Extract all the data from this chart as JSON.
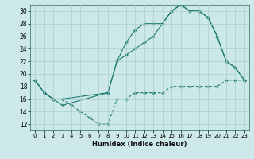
{
  "xlabel": "Humidex (Indice chaleur)",
  "bg_color": "#cce8e8",
  "line_color": "#1a7a6e",
  "grid_color": "#aacece",
  "xlim": [
    -0.5,
    23.5
  ],
  "ylim": [
    11,
    31
  ],
  "xticks": [
    0,
    1,
    2,
    3,
    4,
    5,
    6,
    7,
    8,
    9,
    10,
    11,
    12,
    13,
    14,
    15,
    16,
    17,
    18,
    19,
    20,
    21,
    22,
    23
  ],
  "yticks": [
    12,
    14,
    16,
    18,
    20,
    22,
    24,
    26,
    28,
    30
  ],
  "line1_x": [
    0,
    1,
    2,
    3,
    8,
    9,
    10,
    11,
    12,
    13,
    14,
    15,
    16,
    17,
    18,
    19,
    20,
    21,
    22,
    23
  ],
  "line1_y": [
    19,
    17,
    16,
    15,
    17,
    22,
    25,
    27,
    28,
    28,
    28,
    30,
    31,
    30,
    30,
    29,
    26,
    22,
    21,
    19
  ],
  "line2_x": [
    0,
    1,
    2,
    3,
    8,
    9,
    10,
    11,
    12,
    13,
    14,
    15,
    16,
    17,
    18,
    19,
    20,
    21,
    22,
    23
  ],
  "line2_y": [
    19,
    17,
    16,
    16,
    17,
    22,
    23,
    24,
    25,
    26,
    28,
    30,
    31,
    30,
    30,
    29,
    26,
    22,
    21,
    19
  ],
  "line3_x": [
    0,
    1,
    2,
    3,
    4,
    5,
    6,
    7,
    8,
    9,
    10,
    11,
    12,
    13,
    14,
    15,
    16,
    17,
    18,
    19,
    20,
    21,
    22,
    23
  ],
  "line3_y": [
    19,
    17,
    16,
    16,
    15,
    14,
    13,
    12,
    12,
    16,
    16,
    17,
    17,
    17,
    17,
    18,
    18,
    18,
    18,
    18,
    18,
    19,
    19,
    19
  ]
}
